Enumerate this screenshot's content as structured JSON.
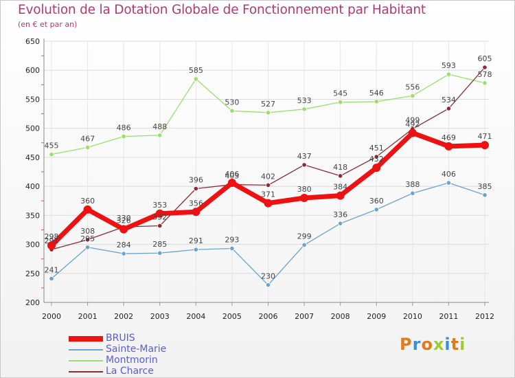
{
  "title": "Evolution de la Dotation Globale de Fonctionnement par Habitant",
  "subtitle": "(en € et par an)",
  "logo": {
    "letters": [
      "P",
      "r",
      "o",
      "x",
      "i",
      "t",
      "i"
    ],
    "colors": [
      "#e07b1e",
      "#3a8fd6",
      "#e07b1e",
      "#9acd32",
      "#3a8fd6",
      "#e07b1e",
      "#9acd32"
    ]
  },
  "chart_data": {
    "type": "line",
    "title": "Evolution de la Dotation Globale de Fonctionnement par Habitant",
    "subtitle": "(en € et par an)",
    "xlabel": "",
    "ylabel": "",
    "ylim": [
      200,
      650
    ],
    "yticks": [
      200,
      250,
      300,
      350,
      400,
      450,
      500,
      550,
      600,
      650
    ],
    "x": [
      2000,
      2001,
      2002,
      2003,
      2004,
      2005,
      2006,
      2007,
      2008,
      2009,
      2010,
      2011,
      2012
    ],
    "grid": true,
    "legend_position": "bottom-left",
    "series": [
      {
        "name": "Montmorin",
        "color": "#99e06a",
        "values": [
          455,
          467,
          486,
          488,
          585,
          530,
          527,
          533,
          545,
          546,
          556,
          593,
          578
        ]
      },
      {
        "name": "Sainte-Marie",
        "color": "#6aa2d0",
        "values": [
          241,
          295,
          284,
          285,
          291,
          293,
          230,
          299,
          336,
          360,
          388,
          406,
          385
        ]
      },
      {
        "name": "La Charce",
        "color": "#8b2a35",
        "values": [
          291,
          308,
          330,
          332,
          396,
          403,
          402,
          437,
          418,
          451,
          499,
          534,
          605
        ]
      },
      {
        "name": "BRUIS",
        "color": "#ee1111",
        "values": [
          298,
          360,
          326,
          353,
          356,
          406,
          371,
          380,
          384,
          432,
          492,
          469,
          471
        ]
      }
    ],
    "legend_order": [
      "BRUIS",
      "Sainte-Marie",
      "Montmorin",
      "La Charce"
    ]
  }
}
